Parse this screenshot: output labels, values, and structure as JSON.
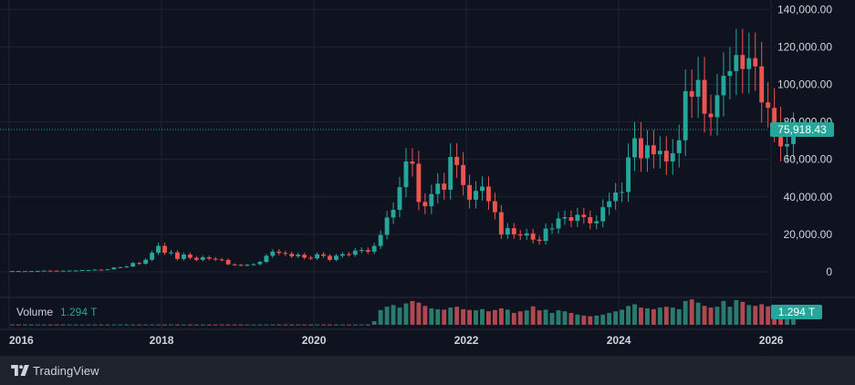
{
  "chart_data": {
    "type": "candlestick",
    "title": "",
    "symbol": "",
    "xlabel": "",
    "ylabel": "",
    "y_ticks": [
      "140,000.00",
      "120,000.00",
      "100,000.00",
      "80,000.00",
      "60,000.00",
      "40,000.00",
      "20,000.00",
      "0"
    ],
    "y_tick_values": [
      140000,
      120000,
      100000,
      80000,
      60000,
      40000,
      20000,
      0
    ],
    "ylim": [
      -10000,
      140000
    ],
    "x_ticks": [
      "2016",
      "2018",
      "2020",
      "2022",
      "2024",
      "2026"
    ],
    "x_tick_years": [
      2016,
      2018,
      2020,
      2022,
      2024,
      2026
    ],
    "xlim": [
      2016.0,
      2027.1
    ],
    "last_price_label": "75,918.43",
    "last_price": 75918.43,
    "grid": true,
    "volume": {
      "label": "Volume",
      "value_label": "1.294 T",
      "badge_label": "1.294 T"
    },
    "colors": {
      "up": "#26a69a",
      "down": "#ef5350",
      "up_volume": "#2a7a6e",
      "down_volume": "#b04850",
      "price_line": "#26a69a",
      "badge_bg": "#26a69a",
      "grid": "#1f2533",
      "text": "#d1d4dc"
    },
    "closes": [
      430,
      370,
      420,
      440,
      520,
      670,
      620,
      570,
      610,
      700,
      740,
      960,
      970,
      1190,
      1070,
      1350,
      2300,
      2480,
      2880,
      4740,
      4360,
      6450,
      10200,
      13860,
      10220,
      10400,
      6900,
      9260,
      7500,
      6400,
      7780,
      7040,
      6610,
      6370,
      4040,
      3740,
      3440,
      3800,
      4100,
      5320,
      8570,
      10820,
      10090,
      9600,
      8290,
      9150,
      7570,
      7190,
      9350,
      8540,
      6410,
      8620,
      9450,
      9140,
      11330,
      11650,
      10780,
      13800,
      19700,
      29000,
      33100,
      45200,
      58900,
      57700,
      37300,
      35000,
      41500,
      47100,
      43800,
      61300,
      57000,
      46300,
      38500,
      43200,
      45500,
      37700,
      31800,
      19900,
      23300,
      20000,
      19400,
      20500,
      17200,
      16500,
      23100,
      23150,
      28500,
      29200,
      27200,
      30500,
      29200,
      25900,
      27000,
      34500,
      37700,
      42300,
      42600,
      61100,
      71300,
      60600,
      67500,
      62700,
      64600,
      58900,
      63300,
      70200,
      96400,
      93400,
      102400,
      84400,
      82500,
      94200,
      104600,
      107100,
      115700,
      108200,
      114000,
      109600,
      90400,
      87500,
      78700,
      66900,
      68200,
      75918
    ],
    "volumes": [
      0.02,
      0.02,
      0.02,
      0.02,
      0.02,
      0.02,
      0.02,
      0.02,
      0.02,
      0.02,
      0.02,
      0.02,
      0.02,
      0.02,
      0.02,
      0.02,
      0.02,
      0.02,
      0.02,
      0.02,
      0.02,
      0.02,
      0.02,
      0.02,
      0.02,
      0.02,
      0.02,
      0.02,
      0.02,
      0.02,
      0.02,
      0.02,
      0.02,
      0.02,
      0.02,
      0.02,
      0.02,
      0.02,
      0.02,
      0.02,
      0.02,
      0.02,
      0.02,
      0.02,
      0.02,
      0.02,
      0.02,
      0.02,
      0.02,
      0.02,
      0.02,
      0.02,
      0.02,
      0.02,
      0.02,
      0.02,
      0.02,
      0.22,
      0.9,
      1.1,
      1.2,
      1.05,
      1.3,
      1.45,
      1.35,
      1.15,
      1.0,
      0.95,
      0.92,
      1.05,
      1.1,
      0.95,
      0.9,
      0.88,
      0.95,
      0.82,
      0.9,
      1.0,
      0.92,
      0.72,
      0.82,
      0.88,
      1.12,
      0.88,
      0.92,
      0.72,
      0.88,
      0.82,
      0.72,
      0.62,
      0.56,
      0.52,
      0.56,
      0.62,
      0.72,
      0.82,
      0.92,
      1.15,
      1.25,
      1.05,
      1.0,
      0.95,
      1.05,
      1.1,
      1.05,
      0.95,
      1.45,
      1.55,
      1.35,
      1.15,
      1.05,
      1.1,
      1.45,
      1.1,
      1.5,
      1.4,
      1.2,
      1.15,
      1.25,
      1.12,
      1.05,
      1.12,
      1.05,
      1.0
    ]
  }
}
